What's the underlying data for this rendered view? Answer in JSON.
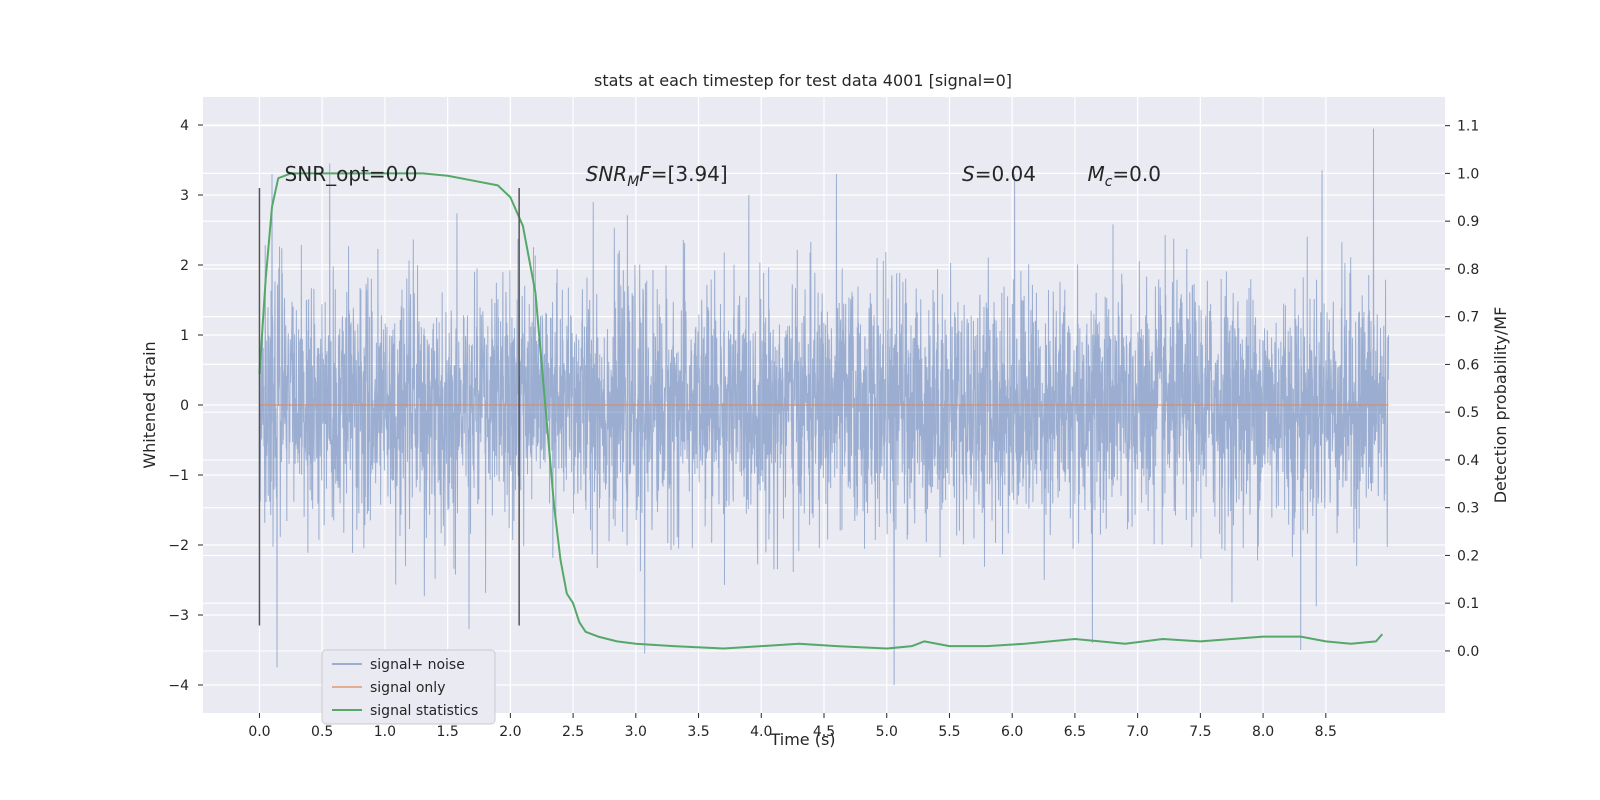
{
  "chart_data": {
    "type": "line",
    "title": "stats at each timestep for test data 4001 [signal=0]",
    "xlabel": "Time (s)",
    "ylabel": "Whitened strain",
    "y2label": "Detection probability/MF",
    "xlim": [
      -0.45,
      9.45
    ],
    "ylim": [
      -4.4,
      4.4
    ],
    "y2lim": [
      -0.13,
      1.16
    ],
    "x_ticks": [
      "0.0",
      "0.5",
      "1.0",
      "1.5",
      "2.0",
      "2.5",
      "3.0",
      "3.5",
      "4.0",
      "4.5",
      "5.0",
      "5.5",
      "6.0",
      "6.5",
      "7.0",
      "7.5",
      "8.0",
      "8.5"
    ],
    "y_ticks": [
      "4",
      "3",
      "2",
      "1",
      "0",
      "−1",
      "−2",
      "−3",
      "−4"
    ],
    "y2_ticks": [
      "1.1",
      "1.0",
      "0.9",
      "0.8",
      "0.7",
      "0.6",
      "0.5",
      "0.4",
      "0.3",
      "0.2",
      "0.1",
      "0.0"
    ],
    "grid": true,
    "legend_position": "lower-left",
    "annotations": [
      {
        "label": "SNR_opt=0.0",
        "x": 0.2,
        "y": 3.2
      },
      {
        "label": "SNR_M F=[3.94]",
        "x": 2.6,
        "y": 3.2
      },
      {
        "label": "S=0.04",
        "x": 5.6,
        "y": 3.2
      },
      {
        "label": "M_c=0.0",
        "x": 6.6,
        "y": 3.2
      }
    ],
    "vlines": [
      {
        "x": 0.0,
        "ymin": -3.15,
        "ymax": 3.1
      },
      {
        "x": 2.07,
        "ymin": -3.15,
        "ymax": 3.1
      }
    ],
    "series": [
      {
        "name": "signal+ noise",
        "color": "#4c72b0",
        "axis": "left",
        "x_range": [
          0.0,
          9.0
        ],
        "envelope_hint": "gaussian noise, std ~0.85, extremes ~3.9 / -4.0",
        "peaks": [
          {
            "x": 0.1,
            "y": 3.3
          },
          {
            "x": 0.56,
            "y": 3.45
          },
          {
            "x": 2.66,
            "y": 2.9
          },
          {
            "x": 3.07,
            "y": -3.55
          },
          {
            "x": 4.6,
            "y": 3.3
          },
          {
            "x": 5.06,
            "y": -4.0
          },
          {
            "x": 6.02,
            "y": 3.3
          },
          {
            "x": 6.64,
            "y": -3.4
          },
          {
            "x": 8.47,
            "y": 3.35
          },
          {
            "x": 8.88,
            "y": 3.95
          },
          {
            "x": 0.14,
            "y": -3.75
          },
          {
            "x": 1.67,
            "y": -3.2
          },
          {
            "x": 8.3,
            "y": -3.5
          }
        ]
      },
      {
        "name": "signal only",
        "color": "#dd8452",
        "axis": "left",
        "x": [
          0.0,
          9.0
        ],
        "y": [
          0.0,
          0.0
        ]
      },
      {
        "name": "signal statistics",
        "color": "#55a868",
        "axis": "right",
        "x": [
          0.0,
          0.05,
          0.1,
          0.15,
          0.25,
          0.5,
          1.0,
          1.3,
          1.5,
          1.7,
          1.9,
          2.0,
          2.1,
          2.2,
          2.3,
          2.35,
          2.4,
          2.45,
          2.5,
          2.55,
          2.6,
          2.7,
          2.85,
          3.0,
          3.3,
          3.7,
          4.0,
          4.3,
          4.6,
          5.0,
          5.2,
          5.3,
          5.5,
          5.8,
          6.1,
          6.3,
          6.5,
          6.7,
          6.9,
          7.2,
          7.5,
          8.0,
          8.3,
          8.5,
          8.7,
          8.9,
          8.95
        ],
        "y": [
          0.58,
          0.78,
          0.93,
          0.99,
          1.0,
          1.0,
          1.0,
          1.0,
          0.995,
          0.985,
          0.975,
          0.95,
          0.89,
          0.75,
          0.45,
          0.3,
          0.19,
          0.12,
          0.1,
          0.06,
          0.04,
          0.03,
          0.02,
          0.015,
          0.01,
          0.005,
          0.01,
          0.015,
          0.01,
          0.005,
          0.01,
          0.02,
          0.01,
          0.01,
          0.015,
          0.02,
          0.025,
          0.02,
          0.015,
          0.025,
          0.02,
          0.03,
          0.03,
          0.02,
          0.015,
          0.02,
          0.035
        ]
      }
    ]
  }
}
